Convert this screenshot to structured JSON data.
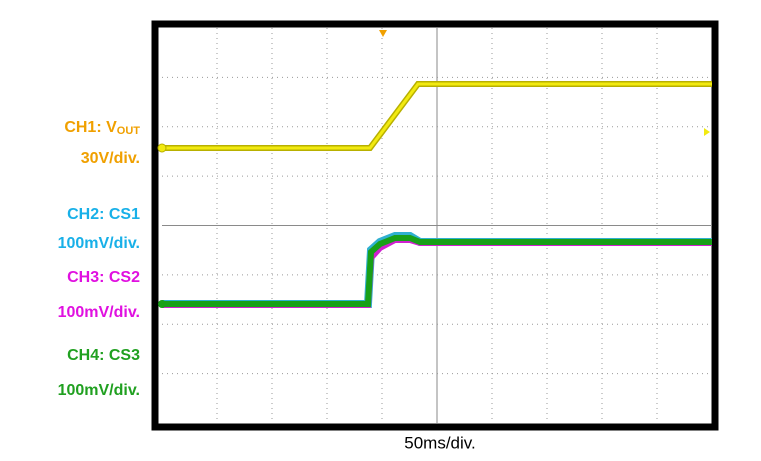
{
  "channels": [
    {
      "name": "CH1: V",
      "subscript": "OUT",
      "scale": "30V/div."
    },
    {
      "name": "CH2: CS1",
      "scale": "100mV/div."
    },
    {
      "name": "CH3: CS2",
      "scale": "100mV/div."
    },
    {
      "name": "CH4: CS3",
      "scale": "100mV/div."
    }
  ],
  "time_scale": "50ms/div."
}
